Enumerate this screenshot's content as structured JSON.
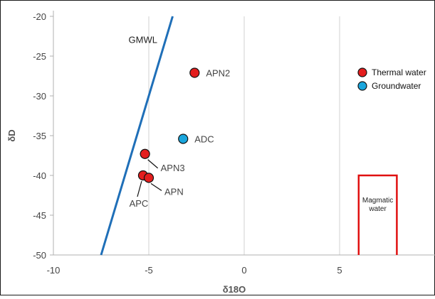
{
  "chart_data": {
    "type": "scatter",
    "title": "",
    "xlabel": "δ18O",
    "ylabel": "δD",
    "xlim": [
      -10,
      10
    ],
    "ylim": [
      -50,
      -20
    ],
    "x_ticks": [
      "-10",
      "-5",
      "0",
      "5"
    ],
    "y_ticks": [
      "-20",
      "-25",
      "-30",
      "-35",
      "-40",
      "-45",
      "-50"
    ],
    "grid": "vertical major gridlines",
    "legend_position": "top-right",
    "series": [
      {
        "name": "Thermal water",
        "color": "#e41e1e",
        "points": [
          {
            "label": "APN2",
            "x": -2.6,
            "y": -27.1
          },
          {
            "label": "APN3",
            "x": -5.2,
            "y": -37.3
          },
          {
            "label": "APC",
            "x": -5.3,
            "y": -40.0
          },
          {
            "label": "APN",
            "x": -5.0,
            "y": -40.3
          }
        ]
      },
      {
        "name": "Groundwater",
        "color": "#1aa6dd",
        "points": [
          {
            "label": "ADC",
            "x": -3.2,
            "y": -35.4
          }
        ]
      }
    ],
    "reference_lines": [
      {
        "label": "GMWL",
        "color": "#1f6fb8",
        "x": [
          -7.5,
          -3.75
        ],
        "y": [
          -50,
          -20
        ]
      }
    ],
    "boxes": [
      {
        "label": "Magmatic water",
        "label_lines": [
          "Magmatic",
          "water"
        ],
        "color": "#e01010",
        "x": [
          6,
          8
        ],
        "y": [
          -40,
          -50
        ]
      }
    ]
  }
}
